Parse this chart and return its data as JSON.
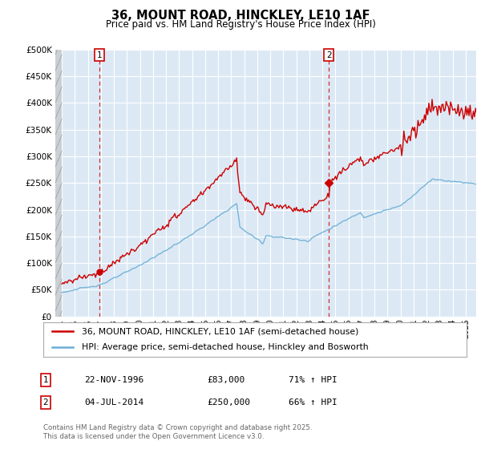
{
  "title": "36, MOUNT ROAD, HINCKLEY, LE10 1AF",
  "subtitle": "Price paid vs. HM Land Registry's House Price Index (HPI)",
  "legend_line1": "36, MOUNT ROAD, HINCKLEY, LE10 1AF (semi-detached house)",
  "legend_line2": "HPI: Average price, semi-detached house, Hinckley and Bosworth",
  "transaction1_date": "22-NOV-1996",
  "transaction1_price": 83000,
  "transaction1_label": "71% ↑ HPI",
  "transaction2_date": "04-JUL-2014",
  "transaction2_price": 250000,
  "transaction2_label": "66% ↑ HPI",
  "footnote": "Contains HM Land Registry data © Crown copyright and database right 2025.\nThis data is licensed under the Open Government Licence v3.0.",
  "hpi_color": "#6baed6",
  "price_color": "#cc0000",
  "ylim": [
    0,
    500000
  ],
  "yticks": [
    0,
    50000,
    100000,
    150000,
    200000,
    250000,
    300000,
    350000,
    400000,
    450000,
    500000
  ],
  "background_color": "#ffffff",
  "plot_bg_color": "#dce9f5",
  "grid_color": "#ffffff",
  "t1_year": 1996.88,
  "t2_year": 2014.5
}
